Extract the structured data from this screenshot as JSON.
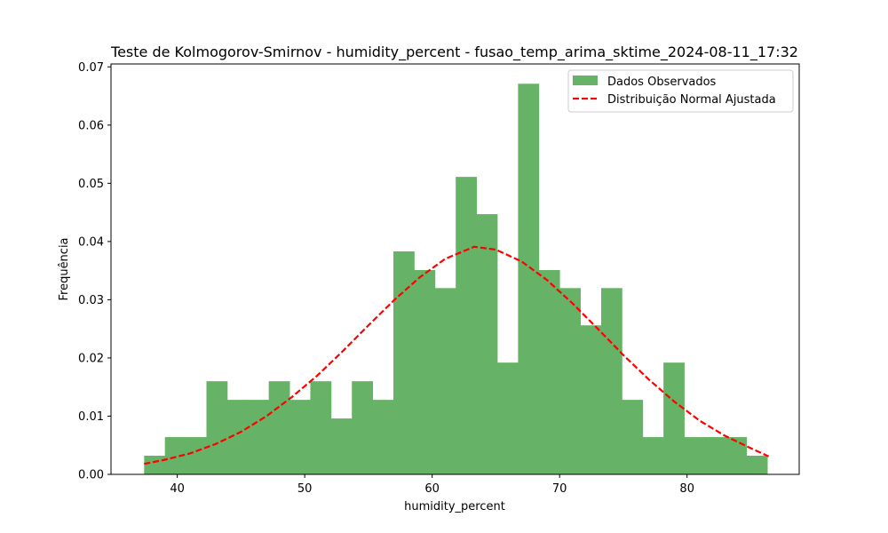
{
  "chart_data": {
    "type": "bar",
    "title": "Teste de Kolmogorov-Smirnov - humidity_percent - fusao_temp_arima_sktime_2024-08-11_17:32",
    "xlabel": "humidity_percent",
    "ylabel": "Frequência",
    "xlim": [
      34.8,
      88.8
    ],
    "ylim": [
      0,
      0.0705
    ],
    "xticks": [
      40,
      50,
      60,
      70,
      80
    ],
    "yticks": [
      0.0,
      0.01,
      0.02,
      0.03,
      0.04,
      0.05,
      0.06,
      0.07
    ],
    "grid": false,
    "legend_position": "top-right",
    "bin_start": 37.4,
    "bin_width": 1.63,
    "series": [
      {
        "name": "Dados Observados",
        "kind": "histogram",
        "color": "#66b266",
        "values": [
          0.0032,
          0.0064,
          0.0064,
          0.016,
          0.0128,
          0.0128,
          0.016,
          0.0128,
          0.016,
          0.0096,
          0.016,
          0.0128,
          0.0383,
          0.0351,
          0.032,
          0.0511,
          0.0447,
          0.0192,
          0.0671,
          0.0351,
          0.032,
          0.0256,
          0.032,
          0.0128,
          0.0064,
          0.0192,
          0.0064,
          0.0064,
          0.0064,
          0.0032
        ]
      },
      {
        "name": "Distribuição Normal Ajustada",
        "kind": "line",
        "color": "#ff0000",
        "style": "dashed",
        "x": [
          37.4,
          39.0,
          41.0,
          43.0,
          45.0,
          47.0,
          49.0,
          51.0,
          53.0,
          55.0,
          57.0,
          59.0,
          61.0,
          63.3,
          65.0,
          67.0,
          69.0,
          71.0,
          73.0,
          75.0,
          77.0,
          79.0,
          81.0,
          83.0,
          85.0,
          86.4
        ],
        "y": [
          0.0018,
          0.0025,
          0.0036,
          0.0052,
          0.0073,
          0.01,
          0.0133,
          0.017,
          0.0212,
          0.0256,
          0.0299,
          0.0338,
          0.037,
          0.0391,
          0.0386,
          0.0366,
          0.0334,
          0.0294,
          0.025,
          0.0205,
          0.0163,
          0.0125,
          0.0092,
          0.0066,
          0.0045,
          0.0031
        ]
      }
    ]
  }
}
